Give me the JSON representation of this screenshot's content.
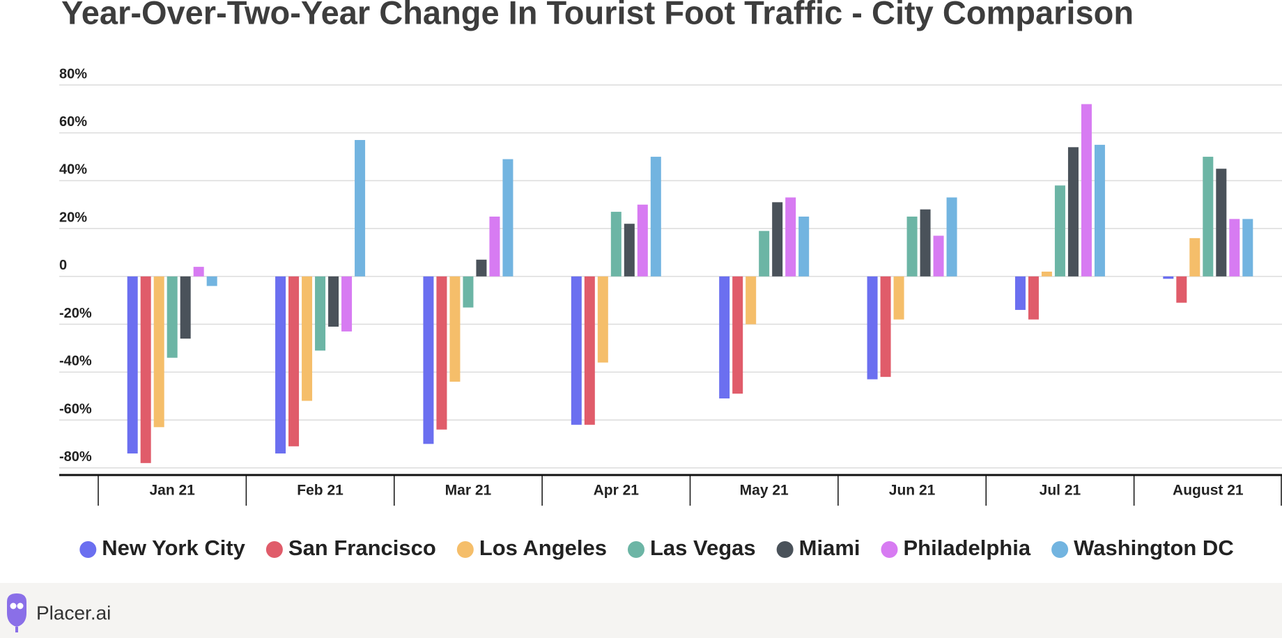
{
  "chart_data": {
    "type": "bar",
    "title": "Year-Over-Two-Year Change In Tourist Foot Traffic - City Comparison",
    "categories": [
      "Jan 21",
      "Feb 21",
      "Mar 21",
      "Apr 21",
      "May 21",
      "Jun 21",
      "Jul 21",
      "August 21"
    ],
    "series": [
      {
        "name": "New York City",
        "color": "#6b6ff0",
        "values": [
          -74,
          -74,
          -70,
          -62,
          -51,
          -43,
          -14,
          -1
        ]
      },
      {
        "name": "San Francisco",
        "color": "#e05c6a",
        "values": [
          -78,
          -71,
          -64,
          -62,
          -49,
          -42,
          -18,
          -11
        ]
      },
      {
        "name": "Los Angeles",
        "color": "#f5be6a",
        "values": [
          -63,
          -52,
          -44,
          -36,
          -20,
          -18,
          2,
          16
        ]
      },
      {
        "name": "Las Vegas",
        "color": "#6cb5a5",
        "values": [
          -34,
          -31,
          -13,
          27,
          19,
          25,
          38,
          50
        ]
      },
      {
        "name": "Miami",
        "color": "#4a525a",
        "values": [
          -26,
          -21,
          7,
          22,
          31,
          28,
          54,
          45
        ]
      },
      {
        "name": "Philadelphia",
        "color": "#d77bf2",
        "values": [
          4,
          -23,
          25,
          30,
          33,
          17,
          72,
          24
        ]
      },
      {
        "name": "Washington DC",
        "color": "#72b4e0",
        "values": [
          -4,
          57,
          49,
          50,
          25,
          33,
          55,
          24
        ]
      }
    ],
    "ylim": [
      -83,
      80
    ],
    "yticks": [
      {
        "value": 80,
        "label": "80%"
      },
      {
        "value": 60,
        "label": "60%"
      },
      {
        "value": 40,
        "label": "40%"
      },
      {
        "value": 20,
        "label": "20%"
      },
      0,
      {
        "value": -20,
        "label": "-20%"
      },
      {
        "value": -40,
        "label": "-40%"
      },
      {
        "value": -60,
        "label": "-60%"
      },
      {
        "value": -80,
        "label": "-80%"
      }
    ],
    "grid": true
  },
  "footer": {
    "brand": "Placer.ai"
  }
}
